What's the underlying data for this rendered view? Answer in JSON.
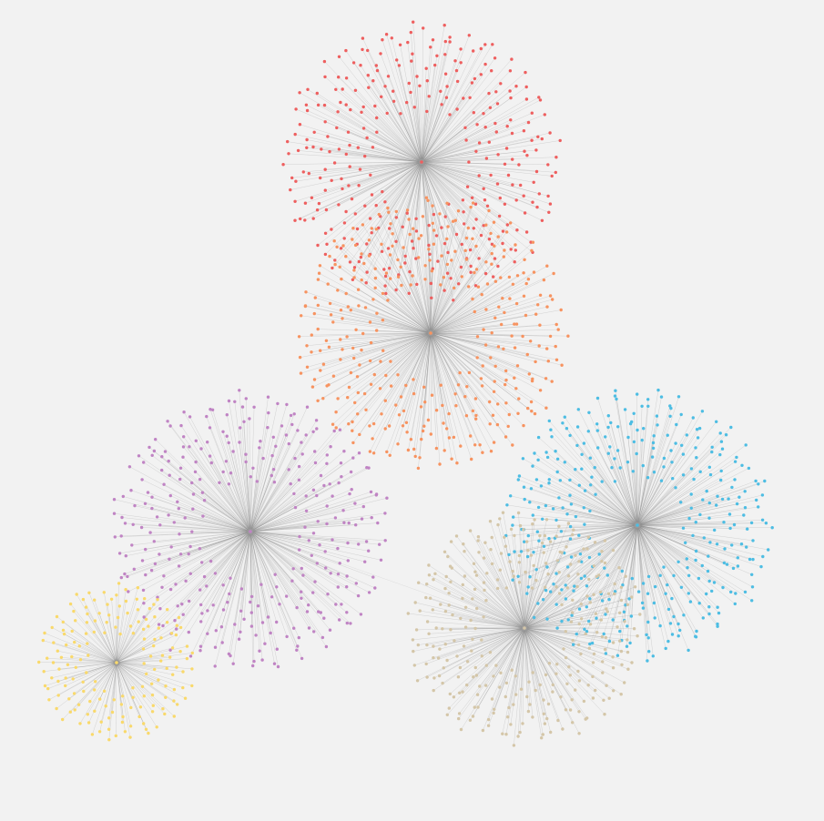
{
  "background_color": "#f2f2f2",
  "edge_color": "#8c8c8c",
  "hub_color": "#9a9a9a",
  "clusters": [
    {
      "id": "red-cluster",
      "color": "#ee5f5f",
      "leaf_count": 340
    },
    {
      "id": "orange-cluster",
      "color": "#f79360",
      "leaf_count": 360
    },
    {
      "id": "purple-cluster",
      "color": "#c084c4",
      "leaf_count": 340
    },
    {
      "id": "blue-cluster",
      "color": "#4dbde3",
      "leaf_count": 380
    },
    {
      "id": "beige-cluster",
      "color": "#d4c6a8",
      "leaf_count": 320
    },
    {
      "id": "yellow-cluster",
      "color": "#f9d96b",
      "leaf_count": 170
    }
  ],
  "inter_cluster_links": [
    {
      "from": "red-cluster",
      "to": "orange-cluster"
    },
    {
      "from": "purple-cluster",
      "to": "yellow-cluster"
    },
    {
      "from": "purple-cluster",
      "to": "beige-cluster"
    },
    {
      "from": "blue-cluster",
      "to": "beige-cluster"
    },
    {
      "from": "orange-cluster",
      "to": "purple-cluster"
    }
  ]
}
